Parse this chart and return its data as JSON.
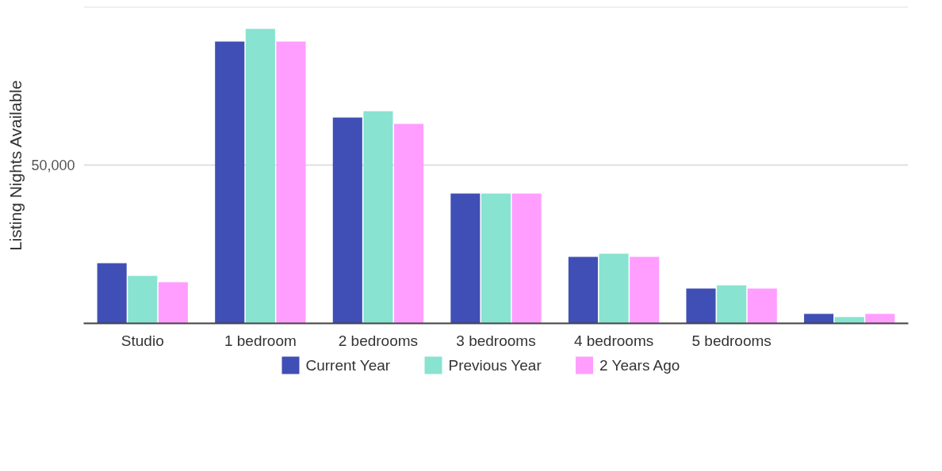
{
  "chart_data": {
    "type": "bar",
    "ylabel": "Listing Nights Available",
    "categories": [
      "Studio",
      "1 bedroom",
      "2 bedrooms",
      "3 bedrooms",
      "4 bedrooms",
      "5 bedrooms",
      null
    ],
    "series": [
      {
        "name": "Current Year",
        "color": "#3f4fb5",
        "values": [
          19000,
          89000,
          65000,
          41000,
          21000,
          11000,
          3000
        ]
      },
      {
        "name": "Previous Year",
        "color": "#88e3d1",
        "values": [
          15000,
          93000,
          67000,
          41000,
          22000,
          12000,
          2000
        ]
      },
      {
        "name": "2 Years Ago",
        "color": "#ff9eff",
        "values": [
          13000,
          89000,
          63000,
          41000,
          21000,
          11000,
          3000
        ]
      }
    ],
    "ylim": [
      0,
      100000
    ],
    "yticks": [
      {
        "value": 0,
        "label": null
      },
      50000,
      {
        "value": 100000,
        "label": null
      }
    ],
    "grid": "y",
    "legend": "bottom"
  }
}
